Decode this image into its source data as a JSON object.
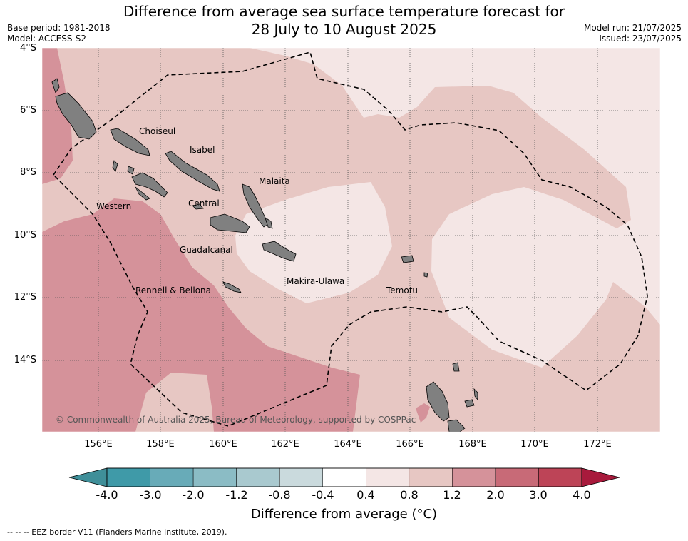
{
  "header": {
    "title_line1": "Difference from average sea surface temperature forecast for",
    "title_line2": "28 July to 10 August 2025",
    "base_period": "Base period: 1981-2018",
    "model": "Model: ACCESS-S2",
    "model_run": "Model run: 21/07/2025",
    "issued": "Issued: 23/07/2025"
  },
  "map": {
    "lat_labels": [
      "4°S",
      "6°S",
      "8°S",
      "10°S",
      "12°S",
      "14°S"
    ],
    "lon_labels": [
      "156°E",
      "158°E",
      "160°E",
      "162°E",
      "164°E",
      "166°E",
      "168°E",
      "170°E",
      "172°E"
    ],
    "places": [
      "Choiseul",
      "Isabel",
      "Malaita",
      "Western",
      "Central",
      "Guadalcanal",
      "Makira-Ulawa",
      "Rennell & Bellona",
      "Temotu"
    ],
    "copyright": "© Commonwealth of Australia 2025, Bureau of Meteorology, supported by COSPPac",
    "land_color": "#808080",
    "eez_line_style": "dashed"
  },
  "colorbar": {
    "ticks": [
      "-4.0",
      "-3.0",
      "-2.0",
      "-1.2",
      "-0.8",
      "-0.4",
      "0.4",
      "0.8",
      "1.2",
      "2.0",
      "3.0",
      "4.0"
    ],
    "colors": [
      "#3f9aa8",
      "#68abb8",
      "#8bbcc5",
      "#a9c9cf",
      "#cadadd",
      "#ffffff",
      "#f4e6e5",
      "#e7c7c3",
      "#d5929a",
      "#c86a77",
      "#bd4457"
    ],
    "under_color": "#3f8f99",
    "over_color": "#a81a3c",
    "label": "Difference from average (°C)"
  },
  "footnote": "--  --  -- EEZ border V11 (Flanders Marine Institute, 2019)."
}
